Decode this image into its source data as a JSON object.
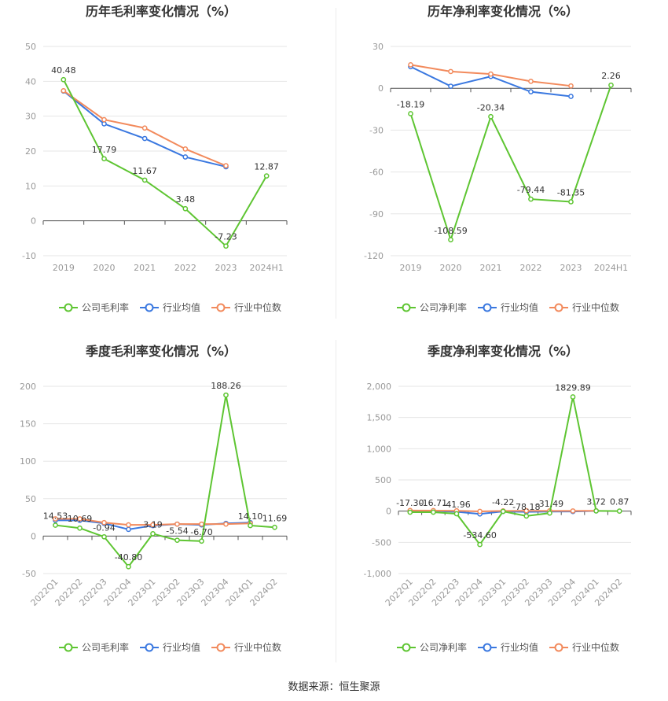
{
  "source_label": "数据来源：恒生聚源",
  "colors": {
    "company": "#5ec532",
    "avg": "#3a78e0",
    "median": "#f28a5c",
    "grid": "#e6e6e6",
    "axis": "#999999",
    "label": "#333333"
  },
  "chart_data": [
    {
      "type": "line",
      "title": "历年毛利率变化情况（%）",
      "categories": [
        "2019",
        "2020",
        "2021",
        "2022",
        "2023",
        "2024H1"
      ],
      "ylim": [
        -10,
        50
      ],
      "yticks": [
        "50",
        "40",
        "30",
        "20",
        "10",
        "0",
        "-10"
      ],
      "rotate_x": false,
      "series": [
        {
          "name": "公司毛利率",
          "role": "company",
          "values": [
            40.48,
            17.79,
            11.67,
            3.48,
            -7.23,
            12.87
          ],
          "labels": [
            "40.48",
            "17.79",
            "11.67",
            "3.48",
            "-7.23",
            "12.87"
          ]
        },
        {
          "name": "行业均值",
          "role": "avg",
          "values": [
            37.2,
            27.8,
            23.6,
            18.3,
            15.5,
            null
          ]
        },
        {
          "name": "行业中位数",
          "role": "median",
          "values": [
            37.3,
            29.0,
            26.6,
            20.6,
            15.8,
            null
          ]
        }
      ]
    },
    {
      "type": "line",
      "title": "历年净利率变化情况（%）",
      "categories": [
        "2019",
        "2020",
        "2021",
        "2022",
        "2023",
        "2024H1"
      ],
      "ylim": [
        -120,
        30
      ],
      "yticks": [
        "30",
        "0",
        "-30",
        "-60",
        "-90",
        "-120"
      ],
      "rotate_x": false,
      "series": [
        {
          "name": "公司净利率",
          "role": "company",
          "values": [
            -18.19,
            -108.59,
            -20.34,
            -79.44,
            -81.35,
            2.26
          ],
          "labels": [
            "-18.19",
            "-108.59",
            "-20.34",
            "-79.44",
            "-81.35",
            "2.26"
          ]
        },
        {
          "name": "行业均值",
          "role": "avg",
          "values": [
            15.5,
            1.5,
            8.5,
            -2.5,
            -5.8,
            null
          ]
        },
        {
          "name": "行业中位数",
          "role": "median",
          "values": [
            16.8,
            12.0,
            10.2,
            5.0,
            1.7,
            null
          ]
        }
      ]
    },
    {
      "type": "line",
      "title": "季度毛利率变化情况（%）",
      "categories": [
        "2022Q1",
        "2022Q2",
        "2022Q3",
        "2022Q4",
        "2023Q1",
        "2023Q2",
        "2023Q3",
        "2023Q4",
        "2024Q1",
        "2024Q2"
      ],
      "ylim": [
        -50,
        200
      ],
      "yticks": [
        "200",
        "150",
        "100",
        "50",
        "0",
        "-50"
      ],
      "rotate_x": true,
      "series": [
        {
          "name": "公司毛利率",
          "role": "company",
          "values": [
            14.53,
            10.69,
            -0.94,
            -40.8,
            3.19,
            -5.54,
            -6.7,
            188.26,
            14.1,
            11.69
          ],
          "labels": [
            "14.53",
            "10.69",
            "-0.94",
            "-40.80",
            "3.19",
            "-5.54",
            "-6.70",
            "188.26",
            "14.10",
            "11.69"
          ]
        },
        {
          "name": "行业均值",
          "role": "avg",
          "values": [
            21,
            21,
            17,
            9,
            14,
            16,
            15,
            17,
            18,
            null
          ]
        },
        {
          "name": "行业中位数",
          "role": "median",
          "values": [
            23,
            23,
            18,
            15,
            15,
            16,
            16,
            16,
            17,
            null
          ]
        }
      ]
    },
    {
      "type": "line",
      "title": "季度净利率变化情况（%）",
      "categories": [
        "2022Q1",
        "2022Q2",
        "2022Q3",
        "2022Q4",
        "2023Q1",
        "2023Q2",
        "2023Q3",
        "2023Q4",
        "2024Q1",
        "2024Q2"
      ],
      "ylim": [
        -1000,
        2000
      ],
      "yticks": [
        "2,000",
        "1,500",
        "1,000",
        "500",
        "0",
        "-500",
        "-1,000"
      ],
      "rotate_x": true,
      "series": [
        {
          "name": "公司净利率",
          "role": "company",
          "values": [
            -17.3,
            -16.71,
            -41.96,
            -534.6,
            -4.22,
            -78.18,
            -31.49,
            1829.89,
            3.72,
            0.87
          ],
          "labels": [
            "-17.30",
            "-16.71",
            "-41.96",
            "-534.60",
            "-4.22",
            "-78.18",
            "-31.49",
            "1829.89",
            "3.72",
            "0.87"
          ]
        },
        {
          "name": "行业均值",
          "role": "avg",
          "values": [
            5,
            2,
            -10,
            -45,
            -5,
            -12,
            -8,
            -6,
            4,
            null
          ]
        },
        {
          "name": "行业中位数",
          "role": "median",
          "values": [
            10,
            8,
            6,
            -4,
            4,
            5,
            4,
            3,
            6,
            null
          ]
        }
      ]
    }
  ]
}
